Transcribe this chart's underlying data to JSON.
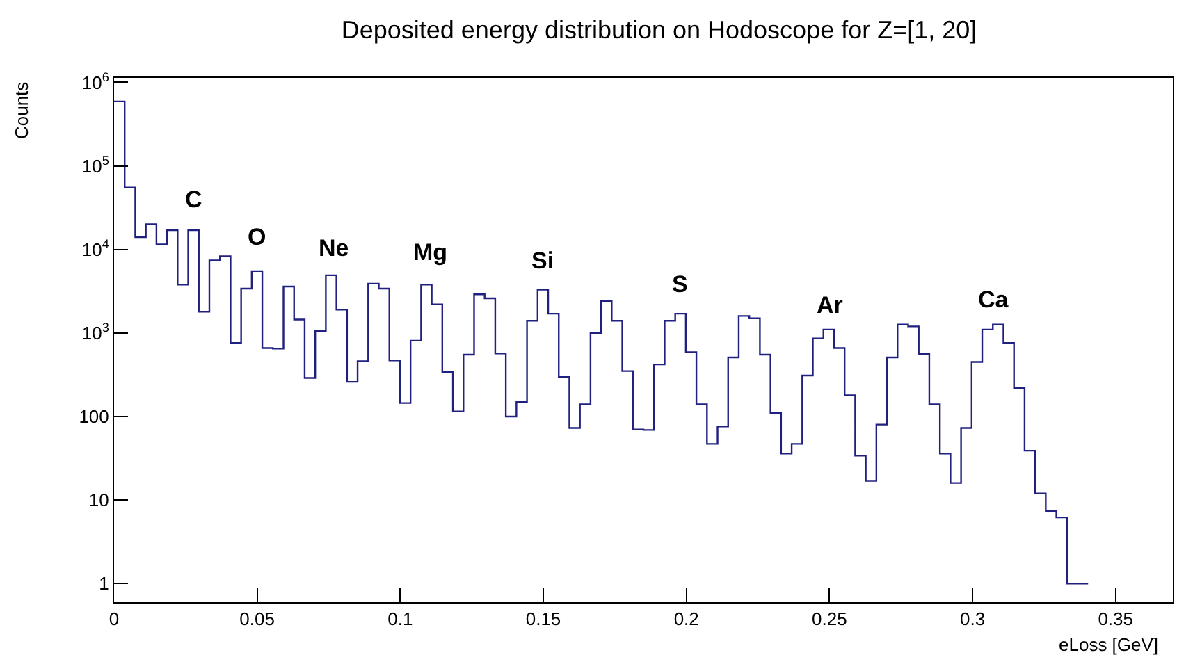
{
  "chart_data": {
    "type": "histogram",
    "title": "Deposited energy distribution on Hodoscope for Z=[1, 20]",
    "xlabel": "eLoss [GeV]",
    "ylabel": "Counts",
    "bins": [
      0,
      0.0037,
      0.0074,
      0.0111,
      0.0148,
      0.0185,
      0.0222,
      0.0259,
      0.0296,
      0.0333,
      0.037,
      0.0407,
      0.0444,
      0.0481,
      0.0518,
      0.0555,
      0.0592,
      0.0629,
      0.0666,
      0.0703,
      0.074,
      0.0777,
      0.0814,
      0.0851,
      0.0888,
      0.0925,
      0.0962,
      0.0999,
      0.1036,
      0.1073,
      0.111,
      0.1147,
      0.1184,
      0.1221,
      0.1258,
      0.1295,
      0.1332,
      0.1369,
      0.1406,
      0.1443,
      0.148,
      0.1517,
      0.1554,
      0.1591,
      0.1628,
      0.1665,
      0.1702,
      0.1739,
      0.1776,
      0.1813,
      0.185,
      0.1887,
      0.1924,
      0.1961,
      0.1998,
      0.2035,
      0.2072,
      0.2109,
      0.2146,
      0.2183,
      0.222,
      0.2257,
      0.2294,
      0.2331,
      0.2368,
      0.2405,
      0.2442,
      0.2479,
      0.2516,
      0.2553,
      0.259,
      0.2627,
      0.2664,
      0.2701,
      0.2738,
      0.2775,
      0.2812,
      0.2849,
      0.2886,
      0.2923,
      0.296,
      0.2997,
      0.3034,
      0.3071,
      0.3108,
      0.3145,
      0.3182,
      0.3219,
      0.3256,
      0.3293,
      0.333,
      0.3367,
      0.3404
    ],
    "values": [
      590000,
      55000,
      14000,
      20000,
      11500,
      17000,
      3800,
      17000,
      1800,
      7400,
      8300,
      760,
      3400,
      5500,
      660,
      650,
      3600,
      1450,
      290,
      1050,
      4900,
      1900,
      260,
      460,
      3900,
      3400,
      470,
      145,
      810,
      3800,
      2200,
      340,
      115,
      550,
      2900,
      2600,
      570,
      100,
      150,
      1400,
      3300,
      1700,
      300,
      73,
      140,
      1000,
      2400,
      1400,
      350,
      70,
      69,
      420,
      1400,
      1700,
      590,
      140,
      47,
      76,
      510,
      1600,
      1500,
      550,
      110,
      36,
      47,
      310,
      860,
      1100,
      660,
      180,
      34,
      17,
      80,
      510,
      1260,
      1200,
      560,
      140,
      36,
      16,
      73,
      450,
      1100,
      1260,
      760,
      220,
      39,
      12,
      7.4,
      6.2,
      1,
      1
    ],
    "color": "#202080",
    "log": "y",
    "xlim": [
      0,
      0.37
    ],
    "xticks": [
      0,
      0.05,
      0.1,
      0.15,
      0.2,
      0.25,
      0.3,
      0.35
    ],
    "ylim": [
      0.6,
      1130000
    ],
    "yticks": [
      1,
      10,
      100,
      {
        "value": 1000,
        "label": "10$^{3}$"
      },
      {
        "value": 10000,
        "label": "10$^{4}$"
      },
      {
        "value": 100000,
        "label": "10$^{5}$"
      },
      {
        "value": 1000000,
        "label": "10$^{6}$"
      }
    ],
    "annotations": [
      "C",
      "O",
      "Ne",
      "Mg",
      "Si",
      "S",
      "Ar",
      "Ca"
    ]
  }
}
